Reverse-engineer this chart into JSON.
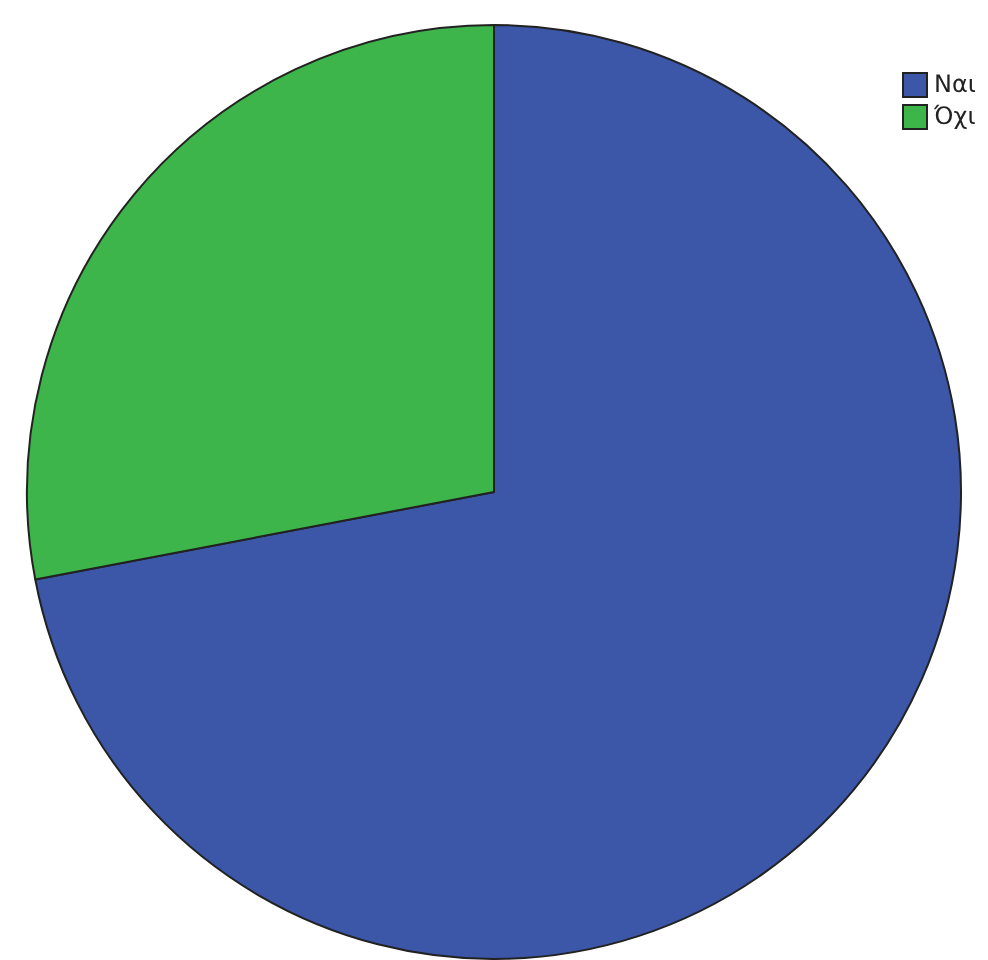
{
  "chart_data": {
    "type": "pie",
    "categories": [
      "Ναι",
      "Όχι"
    ],
    "values": [
      72,
      28
    ],
    "colors": [
      "#3c56a8",
      "#3db54a"
    ],
    "legend": "top right"
  }
}
